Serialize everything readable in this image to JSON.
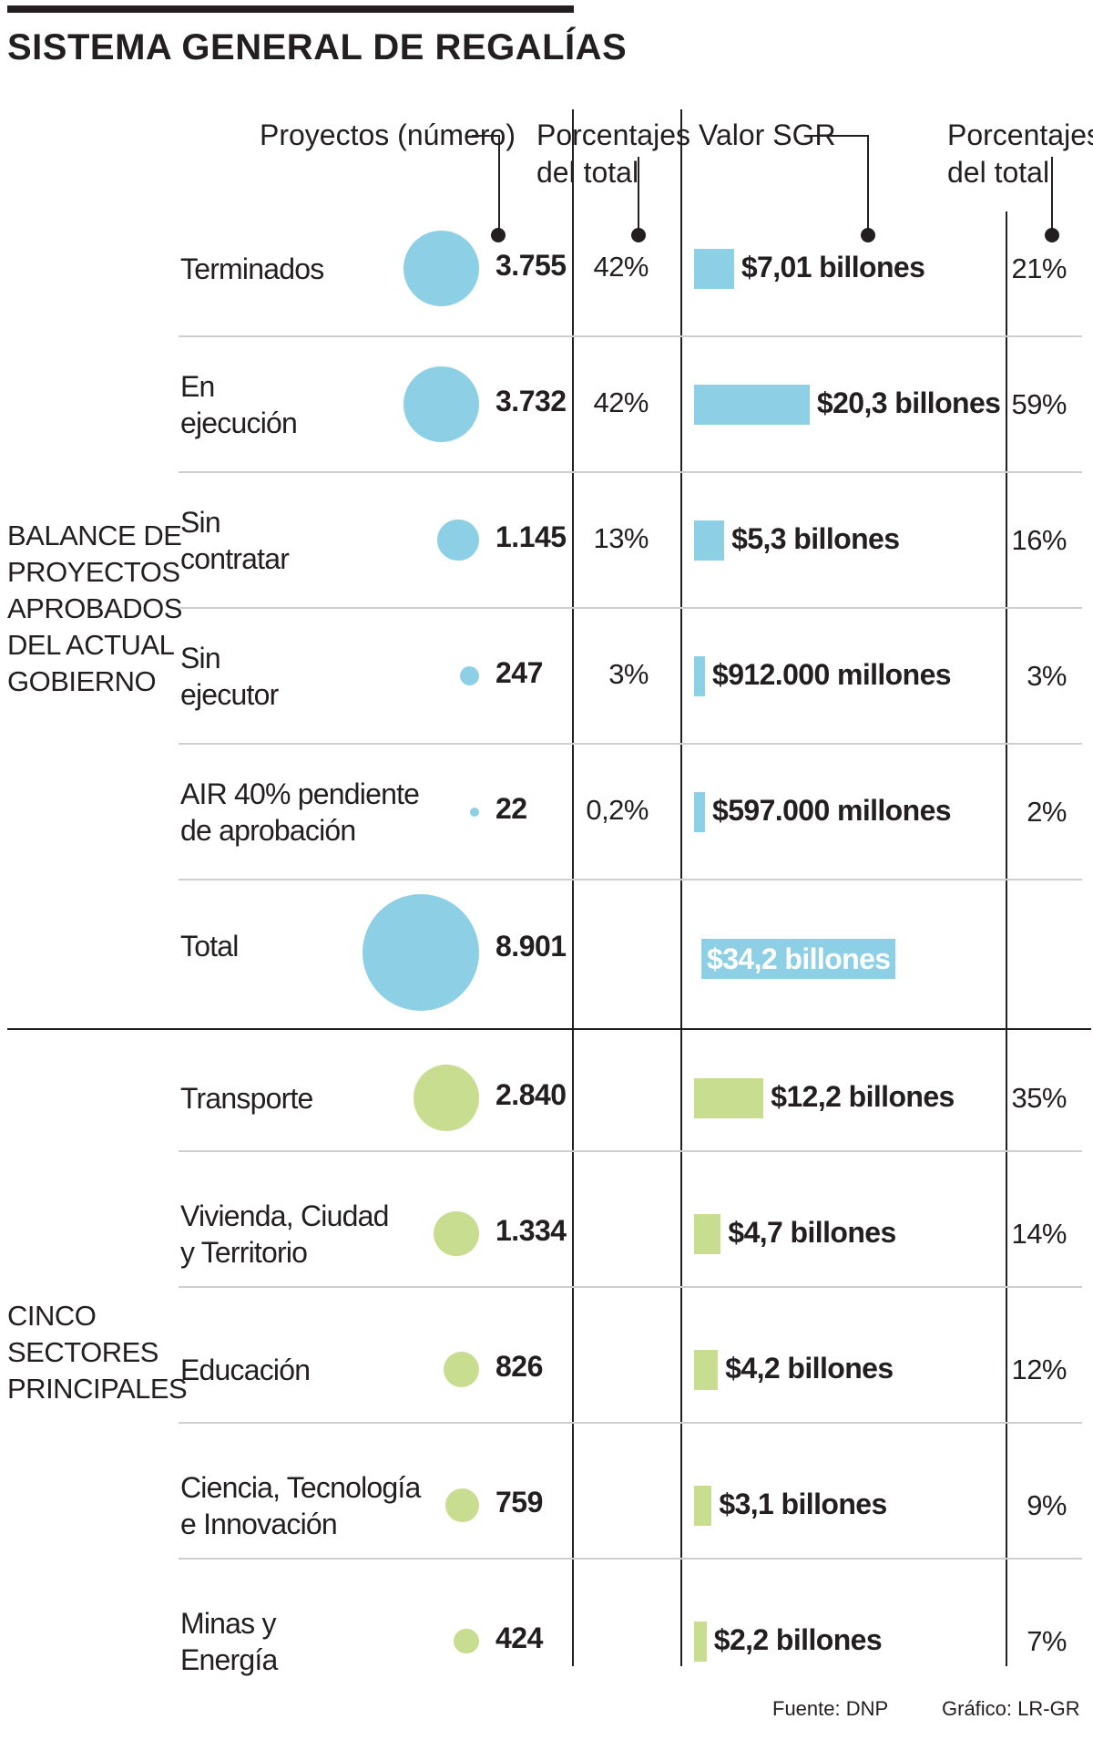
{
  "title": "SISTEMA GENERAL DE REGALÍAS",
  "headers": {
    "projects": "Proyectos (número)",
    "pct_projects": "Porcentajes\ndel total",
    "value": "Valor SGR",
    "pct_value": "Porcentajes\ndel total"
  },
  "groups": {
    "balance": "BALANCE DE\nPROYECTOS\nAPROBADOS\nDEL ACTUAL\nGOBIERNO",
    "sectors": "CINCO\nSECTORES\nPRINCIPALES"
  },
  "colors": {
    "blue": "#8dd0e6",
    "green": "#c8dd8f",
    "ink": "#231f20"
  },
  "balance_total": {
    "label": "Total",
    "count": 8901,
    "count_label": "8.901",
    "value_label": "$34,2 billones"
  },
  "footer": {
    "source": "Fuente: DNP",
    "credit": "Gráfico: LR-GR"
  },
  "chart_data": {
    "type": "table",
    "title": "SISTEMA GENERAL DE REGALÍAS",
    "columns": [
      "Proyectos (número)",
      "Porcentajes del total",
      "Valor SGR",
      "Porcentajes del total"
    ],
    "value_unit": "billones de pesos",
    "balance": [
      {
        "label": "Terminados",
        "count": 3755,
        "count_label": "3.755",
        "pct_count": "42%",
        "value": 7.01,
        "value_label": "$7,01 billones",
        "pct_value": "21%"
      },
      {
        "label": "En\nejecución",
        "count": 3732,
        "count_label": "3.732",
        "pct_count": "42%",
        "value": 20.3,
        "value_label": "$20,3 billones",
        "pct_value": "59%"
      },
      {
        "label": "Sin\ncontratar",
        "count": 1145,
        "count_label": "1.145",
        "pct_count": "13%",
        "value": 5.3,
        "value_label": "$5,3 billones",
        "pct_value": "16%"
      },
      {
        "label": "Sin\nejecutor",
        "count": 247,
        "count_label": "247",
        "pct_count": "3%",
        "value": 0.912,
        "value_label": "$912.000 millones",
        "pct_value": "3%"
      },
      {
        "label": "AIR  40% pendiente\nde aprobación",
        "count": 22,
        "count_label": "22",
        "pct_count": "0,2%",
        "value": 0.597,
        "value_label": "$597.000 millones",
        "pct_value": "2%"
      }
    ],
    "sectors": [
      {
        "label": "Transporte",
        "count": 2840,
        "count_label": "2.840",
        "value": 12.2,
        "value_label": "$12,2 billones",
        "pct_value": "35%"
      },
      {
        "label": "Vivienda, Ciudad\ny Territorio",
        "count": 1334,
        "count_label": "1.334",
        "value": 4.7,
        "value_label": "$4,7 billones",
        "pct_value": "14%"
      },
      {
        "label": "Educación",
        "count": 826,
        "count_label": "826",
        "value": 4.2,
        "value_label": "$4,2 billones",
        "pct_value": "12%"
      },
      {
        "label": "Ciencia, Tecnología\ne Innovación",
        "count": 759,
        "count_label": "759",
        "value": 3.1,
        "value_label": "$3,1 billones",
        "pct_value": "9%"
      },
      {
        "label": "Minas y\nEnergía",
        "count": 424,
        "count_label": "424",
        "value": 2.2,
        "value_label": "$2,2 billones",
        "pct_value": "7%"
      }
    ]
  }
}
